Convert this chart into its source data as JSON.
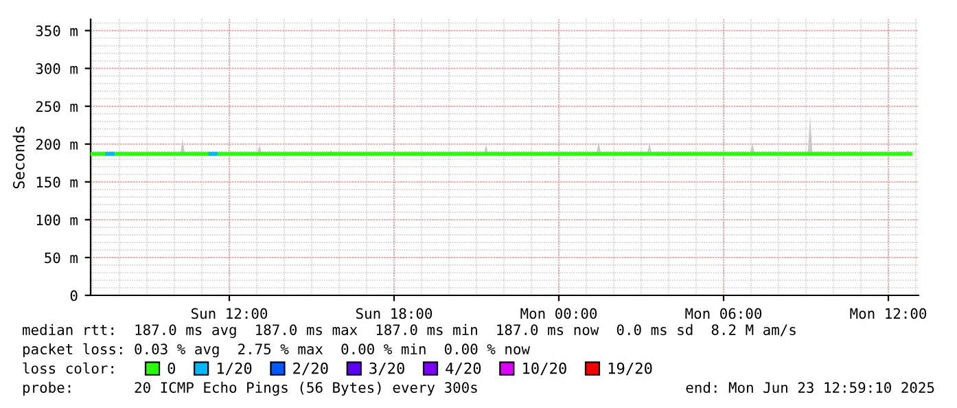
{
  "chart_data": {
    "type": "line",
    "ylabel": "Seconds",
    "legend_title": "loss color:",
    "xlim": [
      "2025-06-22T06:57",
      "2025-06-23T13:06"
    ],
    "xticks": [
      {
        "value": "2025-06-22T12:00",
        "label": "Sun 12:00"
      },
      {
        "value": "2025-06-22T18:00",
        "label": "Sun 18:00"
      },
      {
        "value": "2025-06-23T00:00",
        "label": "Mon 00:00"
      },
      {
        "value": "2025-06-23T06:00",
        "label": "Mon 06:00"
      },
      {
        "value": "2025-06-23T12:00",
        "label": "Mon 12:00"
      }
    ],
    "ylim": [
      0,
      365
    ],
    "yticks": [
      0,
      {
        "value": 50,
        "label": "50 m"
      },
      {
        "value": 100,
        "label": "100 m"
      },
      {
        "value": 150,
        "label": "150 m"
      },
      {
        "value": 200,
        "label": "200 m"
      },
      {
        "value": 250,
        "label": "250 m"
      },
      {
        "value": 300,
        "label": "300 m"
      },
      {
        "value": 350,
        "label": "350 m"
      }
    ],
    "grid": true,
    "legend": "bottom",
    "marker": "none",
    "line_style": "solid",
    "series": [
      {
        "name": "0",
        "color": "#26ff00",
        "x": [
          "2025-06-22T07:00",
          "2025-06-22T10:13",
          "2025-06-22T10:18",
          "2025-06-22T10:23",
          "2025-06-22T13:01",
          "2025-06-22T13:06",
          "2025-06-22T13:11",
          "2025-06-22T13:22",
          "2025-06-22T13:27",
          "2025-06-22T13:32",
          "2025-06-22T15:37",
          "2025-06-22T15:42",
          "2025-06-22T15:47",
          "2025-06-22T21:16",
          "2025-06-22T21:21",
          "2025-06-22T21:26",
          "2025-06-23T01:22",
          "2025-06-23T01:27",
          "2025-06-23T01:32",
          "2025-06-23T03:13",
          "2025-06-23T03:18",
          "2025-06-23T03:23",
          "2025-06-23T06:58",
          "2025-06-23T07:03",
          "2025-06-23T07:08",
          "2025-06-23T09:04",
          "2025-06-23T09:09",
          "2025-06-23T09:14",
          "2025-06-23T12:37",
          "2025-06-23T12:42",
          "2025-06-23T12:48"
        ],
        "values": [
          187,
          187,
          187,
          187,
          187,
          187,
          187,
          187,
          187,
          187,
          187,
          187,
          187,
          187,
          187,
          187,
          187,
          187,
          187,
          187,
          187,
          187,
          187,
          187,
          187,
          187,
          187,
          187,
          187,
          187,
          187
        ],
        "lower": [
          187,
          187,
          187,
          187,
          187,
          187,
          187,
          187,
          187,
          187,
          187,
          187,
          187,
          187,
          187,
          187,
          187,
          187,
          187,
          187,
          187,
          187,
          187,
          187,
          187,
          187,
          187,
          187,
          187,
          187,
          187
        ],
        "upper": [
          187,
          187,
          207,
          187,
          187,
          199,
          187,
          187,
          190,
          187,
          187,
          192,
          187,
          187,
          199,
          187,
          187,
          203,
          187,
          187,
          201,
          187,
          187,
          201,
          187,
          187,
          238,
          187,
          187,
          192,
          187
        ]
      },
      {
        "name": "1/20",
        "color": "#00b8ff",
        "x": [
          "2025-06-22T07:33",
          "2025-06-22T07:45",
          "2025-06-22T09:00",
          "2025-06-22T11:18",
          "2025-06-22T11:30"
        ],
        "values": [
          187,
          187,
          null,
          187,
          187
        ]
      },
      {
        "name": "2/20",
        "color": "#0059ff"
      },
      {
        "name": "3/20",
        "color": "#5e00ff"
      },
      {
        "name": "4/20",
        "color": "#7e00ff"
      },
      {
        "name": "10/20",
        "color": "#dd00ff"
      },
      {
        "name": "19/20",
        "color": "#ff0000"
      }
    ],
    "annotations": [
      "median rtt:  187.0 ms avg  187.0 ms max  187.0 ms min  187.0 ms now  0.0 ms sd  8.2 M am/s",
      "packet loss: 0.03 % avg  2.75 % max  0.00 % min  0.00 % now",
      "probe:       20 ICMP Echo Pings (56 Bytes) every 300s",
      "end: Mon Jun 23 12:59:10 2025"
    ]
  }
}
